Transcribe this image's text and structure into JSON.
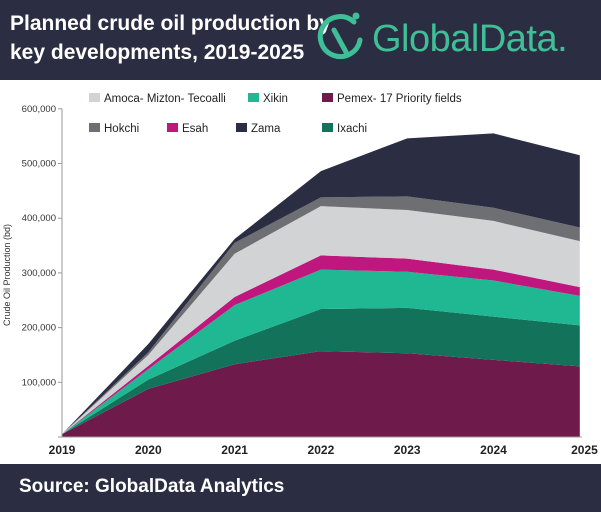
{
  "header": {
    "title_line1": "Planned crude oil production by",
    "title_line2": "key developments, 2019-2025",
    "logo_text": "GlobalData."
  },
  "footer": {
    "source": "Source:  GlobalData Analytics"
  },
  "colors": {
    "header_bg": "#2b2e42",
    "logo": "#3fbf97"
  },
  "chart_data": {
    "type": "area",
    "stacked": true,
    "title": "Planned crude oil production by key developments, 2019-2025",
    "xlabel": "",
    "ylabel": "Crude Oil Production (bd)",
    "ylim": [
      0,
      600000
    ],
    "yticks": [
      100000,
      200000,
      300000,
      400000,
      500000,
      600000
    ],
    "ytick_labels": [
      "100,000",
      "200,000",
      "300,000",
      "400,000",
      "500,000",
      "600,000"
    ],
    "categories": [
      "2019",
      "2020",
      "2021",
      "2022",
      "2023",
      "2024",
      "2025"
    ],
    "series": [
      {
        "name": "Pemex- 17 Priority fields",
        "color": "#6e1a4a",
        "values": [
          5000,
          88000,
          133000,
          157000,
          153000,
          141000,
          129000
        ]
      },
      {
        "name": "Ixachi",
        "color": "#12735a",
        "values": [
          0,
          17000,
          43000,
          77000,
          83000,
          79000,
          75000
        ]
      },
      {
        "name": "Xikin",
        "color": "#1fb893",
        "values": [
          0,
          19000,
          65000,
          72000,
          66000,
          66000,
          54000
        ]
      },
      {
        "name": "Esah",
        "color": "#c0177f",
        "values": [
          0,
          6000,
          15000,
          26000,
          24000,
          20000,
          16000
        ]
      },
      {
        "name": "Amoca- Mizton- Tecoalli",
        "color": "#d2d3d5",
        "values": [
          0,
          20000,
          79000,
          90000,
          89000,
          89000,
          84000
        ]
      },
      {
        "name": "Hokchi",
        "color": "#6e6f72",
        "values": [
          0,
          5000,
          20000,
          16000,
          25000,
          24000,
          25000
        ]
      },
      {
        "name": "Zama",
        "color": "#2b2e42",
        "values": [
          0,
          15000,
          7000,
          48000,
          106000,
          136000,
          132000
        ]
      }
    ],
    "legend_order": [
      [
        "Amoca- Mizton- Tecoalli",
        "Xikin",
        "Pemex- 17 Priority fields"
      ],
      [
        "Hokchi",
        "Esah",
        "Zama",
        "Ixachi"
      ]
    ],
    "legend_position": "top"
  }
}
